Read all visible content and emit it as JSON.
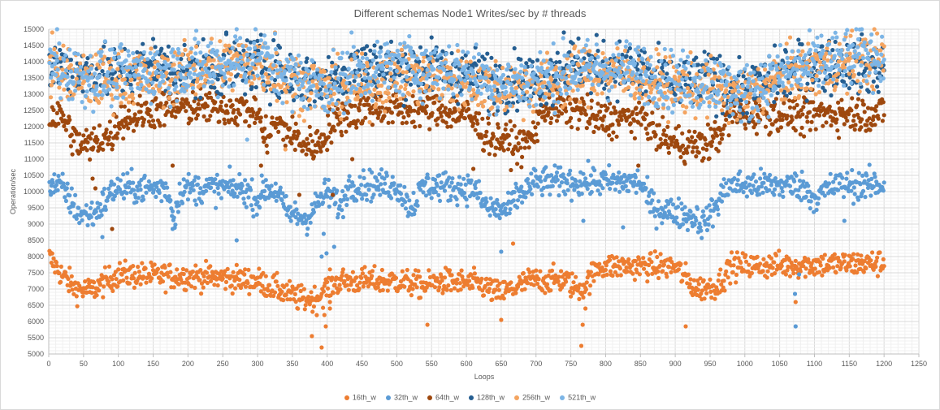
{
  "chart_data": {
    "type": "scatter",
    "title": "Different schemas Node1 Writes/sec by # threads",
    "xlabel": "Loops",
    "ylabel": "Operation/sec",
    "xlim": [
      0,
      1250
    ],
    "ylim": [
      5000,
      15000
    ],
    "x_ticks": [
      0,
      50,
      100,
      150,
      200,
      250,
      300,
      350,
      400,
      450,
      500,
      550,
      600,
      650,
      700,
      750,
      800,
      850,
      900,
      950,
      1000,
      1050,
      1100,
      1150,
      1200,
      1250
    ],
    "y_ticks": [
      5000,
      5500,
      6000,
      6500,
      7000,
      7500,
      8000,
      8500,
      9000,
      9500,
      10000,
      10500,
      11000,
      11500,
      12000,
      12500,
      13000,
      13500,
      14000,
      14500,
      15000
    ],
    "grid": true,
    "legend_position": "bottom",
    "series": [
      {
        "name": "16th_w",
        "color": "#ed7d31",
        "profile": [
          [
            0,
            8000
          ],
          [
            10,
            7700
          ],
          [
            20,
            7400
          ],
          [
            40,
            7000
          ],
          [
            60,
            6950
          ],
          [
            80,
            7200
          ],
          [
            100,
            7450
          ],
          [
            150,
            7400
          ],
          [
            200,
            7400
          ],
          [
            250,
            7350
          ],
          [
            300,
            7250
          ],
          [
            340,
            6900
          ],
          [
            360,
            6700
          ],
          [
            385,
            6700
          ],
          [
            400,
            7050
          ],
          [
            420,
            7250
          ],
          [
            500,
            7250
          ],
          [
            540,
            7100
          ],
          [
            560,
            7250
          ],
          [
            620,
            7150
          ],
          [
            645,
            6850
          ],
          [
            660,
            6950
          ],
          [
            690,
            7250
          ],
          [
            740,
            7300
          ],
          [
            760,
            7000
          ],
          [
            770,
            7100
          ],
          [
            790,
            7700
          ],
          [
            900,
            7700
          ],
          [
            930,
            7000
          ],
          [
            960,
            7100
          ],
          [
            980,
            7700
          ],
          [
            1200,
            7800
          ]
        ],
        "spread": 200,
        "outliers": [
          [
            378,
            5550
          ],
          [
            392,
            5200
          ],
          [
            398,
            5850
          ],
          [
            396,
            6200
          ],
          [
            404,
            6400
          ],
          [
            404,
            6600
          ],
          [
            544,
            5900
          ],
          [
            650,
            6050
          ],
          [
            667,
            8400
          ],
          [
            765,
            5250
          ],
          [
            767,
            5900
          ],
          [
            771,
            6400
          ],
          [
            915,
            5850
          ],
          [
            1073,
            6600
          ]
        ]
      },
      {
        "name": "32th_w",
        "color": "#5b9bd5",
        "profile": [
          [
            0,
            10300
          ],
          [
            20,
            10100
          ],
          [
            35,
            9600
          ],
          [
            45,
            9300
          ],
          [
            65,
            9300
          ],
          [
            80,
            9700
          ],
          [
            95,
            10100
          ],
          [
            170,
            10100
          ],
          [
            180,
            9200
          ],
          [
            190,
            10100
          ],
          [
            280,
            10100
          ],
          [
            300,
            9700
          ],
          [
            310,
            10100
          ],
          [
            330,
            10000
          ],
          [
            340,
            9400
          ],
          [
            370,
            9150
          ],
          [
            385,
            9600
          ],
          [
            400,
            10000
          ],
          [
            420,
            9500
          ],
          [
            430,
            10200
          ],
          [
            500,
            10200
          ],
          [
            520,
            9500
          ],
          [
            540,
            10200
          ],
          [
            610,
            10100
          ],
          [
            630,
            9500
          ],
          [
            660,
            9400
          ],
          [
            670,
            9800
          ],
          [
            700,
            10300
          ],
          [
            850,
            10300
          ],
          [
            860,
            9800
          ],
          [
            870,
            9500
          ],
          [
            930,
            9200
          ],
          [
            940,
            9000
          ],
          [
            960,
            9600
          ],
          [
            975,
            10200
          ],
          [
            1080,
            10200
          ],
          [
            1100,
            9800
          ],
          [
            1130,
            10200
          ],
          [
            1200,
            10200
          ]
        ],
        "spread": 230,
        "outliers": [
          [
            77,
            8600
          ],
          [
            178,
            8850
          ],
          [
            270,
            8500
          ],
          [
            395,
            8700
          ],
          [
            410,
            8300
          ],
          [
            392,
            8000
          ],
          [
            399,
            8100
          ],
          [
            650,
            8150
          ],
          [
            768,
            9100
          ],
          [
            825,
            8900
          ],
          [
            1072,
            6850
          ],
          [
            1078,
            7450
          ],
          [
            1073,
            5850
          ],
          [
            1143,
            9100
          ]
        ]
      },
      {
        "name": "64th_w",
        "color": "#9e480e",
        "profile": [
          [
            0,
            12300
          ],
          [
            20,
            12300
          ],
          [
            30,
            11900
          ],
          [
            40,
            11500
          ],
          [
            60,
            11400
          ],
          [
            75,
            11700
          ],
          [
            90,
            11700
          ],
          [
            100,
            12200
          ],
          [
            150,
            12500
          ],
          [
            200,
            12600
          ],
          [
            250,
            12600
          ],
          [
            300,
            12500
          ],
          [
            310,
            11600
          ],
          [
            325,
            12100
          ],
          [
            340,
            11900
          ],
          [
            370,
            11400
          ],
          [
            390,
            11500
          ],
          [
            400,
            11900
          ],
          [
            420,
            12300
          ],
          [
            460,
            12600
          ],
          [
            560,
            12500
          ],
          [
            600,
            12400
          ],
          [
            625,
            11800
          ],
          [
            650,
            11600
          ],
          [
            680,
            11400
          ],
          [
            695,
            11700
          ],
          [
            710,
            12600
          ],
          [
            770,
            12500
          ],
          [
            780,
            12200
          ],
          [
            860,
            12300
          ],
          [
            870,
            11800
          ],
          [
            900,
            11500
          ],
          [
            940,
            11400
          ],
          [
            960,
            11700
          ],
          [
            980,
            12400
          ],
          [
            1200,
            12400
          ]
        ],
        "spread": 280,
        "outliers": [
          [
            63,
            10400
          ],
          [
            67,
            10100
          ],
          [
            91,
            8850
          ],
          [
            178,
            10800
          ],
          [
            305,
            10800
          ],
          [
            360,
            9900
          ],
          [
            408,
            9900
          ],
          [
            436,
            11000
          ],
          [
            610,
            10700
          ],
          [
            847,
            10800
          ],
          [
            1085,
            11700
          ]
        ]
      },
      {
        "name": "128th_w",
        "color": "#255e91",
        "profile": [
          [
            0,
            13900
          ],
          [
            50,
            13700
          ],
          [
            100,
            13600
          ],
          [
            150,
            13900
          ],
          [
            200,
            13700
          ],
          [
            250,
            13800
          ],
          [
            300,
            13900
          ],
          [
            350,
            13500
          ],
          [
            400,
            13400
          ],
          [
            450,
            13900
          ],
          [
            500,
            13800
          ],
          [
            550,
            13800
          ],
          [
            600,
            13600
          ],
          [
            650,
            13400
          ],
          [
            700,
            13400
          ],
          [
            750,
            13900
          ],
          [
            800,
            13800
          ],
          [
            850,
            13700
          ],
          [
            900,
            13200
          ],
          [
            950,
            13500
          ],
          [
            1000,
            13000
          ],
          [
            1050,
            13600
          ],
          [
            1100,
            13900
          ],
          [
            1150,
            13900
          ],
          [
            1200,
            13800
          ]
        ],
        "spread": 420,
        "outliers": [
          [
            150,
            14700
          ],
          [
            255,
            14900
          ],
          [
            740,
            14900
          ],
          [
            990,
            12200
          ]
        ]
      },
      {
        "name": "256th_w",
        "color": "#f4a460",
        "profile": [
          [
            0,
            13800
          ],
          [
            50,
            13400
          ],
          [
            100,
            13500
          ],
          [
            150,
            13500
          ],
          [
            200,
            13700
          ],
          [
            250,
            13900
          ],
          [
            300,
            14000
          ],
          [
            350,
            13400
          ],
          [
            400,
            13200
          ],
          [
            450,
            13200
          ],
          [
            500,
            13600
          ],
          [
            550,
            13500
          ],
          [
            600,
            13400
          ],
          [
            650,
            13200
          ],
          [
            700,
            13300
          ],
          [
            750,
            13500
          ],
          [
            800,
            13700
          ],
          [
            850,
            13500
          ],
          [
            900,
            13200
          ],
          [
            950,
            13200
          ],
          [
            1000,
            12900
          ],
          [
            1050,
            13500
          ],
          [
            1100,
            13800
          ],
          [
            1150,
            14000
          ],
          [
            1200,
            14100
          ]
        ],
        "spread": 430,
        "outliers": [
          [
            5,
            14900
          ],
          [
            325,
            14900
          ],
          [
            340,
            11300
          ],
          [
            745,
            14100
          ]
        ]
      },
      {
        "name": "521th_w",
        "color": "#7cb5e6",
        "profile": [
          [
            0,
            13900
          ],
          [
            50,
            13500
          ],
          [
            100,
            13600
          ],
          [
            150,
            13700
          ],
          [
            200,
            13800
          ],
          [
            250,
            13900
          ],
          [
            300,
            14200
          ],
          [
            350,
            13500
          ],
          [
            400,
            13200
          ],
          [
            450,
            13700
          ],
          [
            500,
            13900
          ],
          [
            550,
            13800
          ],
          [
            600,
            13700
          ],
          [
            650,
            13300
          ],
          [
            700,
            13400
          ],
          [
            750,
            13700
          ],
          [
            800,
            13800
          ],
          [
            850,
            13700
          ],
          [
            900,
            13400
          ],
          [
            950,
            13400
          ],
          [
            1000,
            13000
          ],
          [
            1050,
            13600
          ],
          [
            1100,
            13900
          ],
          [
            1150,
            14100
          ],
          [
            1200,
            14200
          ]
        ],
        "spread": 450,
        "outliers": [
          [
            12,
            15000
          ],
          [
            270,
            15000
          ],
          [
            285,
            11600
          ],
          [
            435,
            14900
          ],
          [
            1110,
            14800
          ]
        ]
      }
    ]
  }
}
